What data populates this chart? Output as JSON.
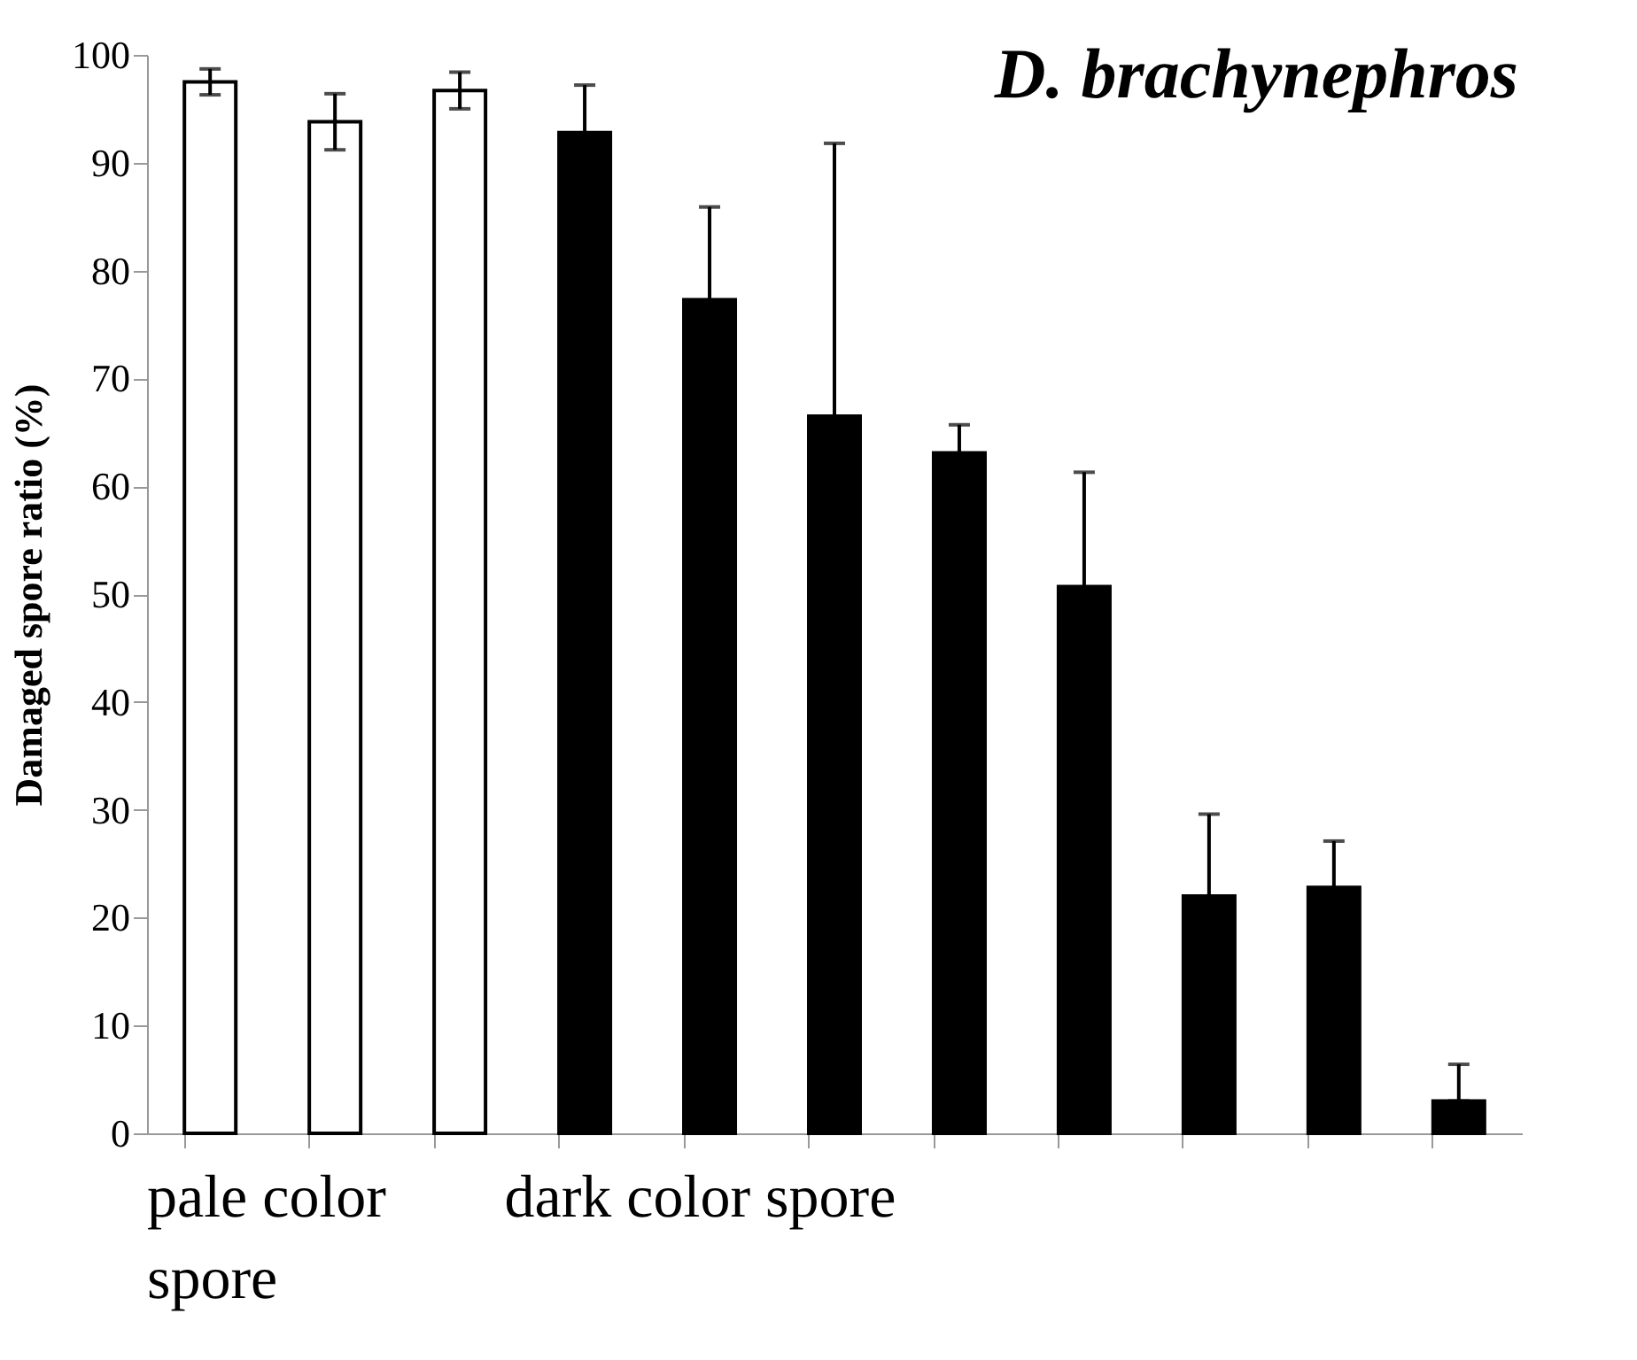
{
  "chart_data": {
    "type": "bar",
    "title": "D. brachynephros",
    "ylabel": "Damaged spore ratio (%)",
    "categories": [
      null,
      null,
      null,
      null,
      null,
      null,
      null,
      null,
      null,
      null,
      null
    ],
    "values": [
      97.5,
      93.8,
      96.7,
      92.8,
      77.3,
      66.5,
      63.1,
      50.7,
      22.0,
      22.8,
      3.0
    ],
    "errors": [
      1.2,
      2.6,
      1.7,
      4.4,
      8.6,
      25.3,
      2.6,
      10.6,
      7.6,
      4.3,
      [
        3.0,
        6.4
      ]
    ],
    "colors": [
      "#ffffff",
      "#ffffff",
      "#ffffff",
      "#000000",
      "#000000",
      "#000000",
      "#000000",
      "#000000",
      "#000000",
      "#000000",
      "#000000"
    ],
    "ylim": [
      0,
      100
    ],
    "yticks": [
      0,
      10,
      20,
      30,
      40,
      50,
      60,
      70,
      80,
      90,
      100
    ],
    "grid": false,
    "annotations": [
      "pale color spore",
      "dark color spore"
    ]
  }
}
